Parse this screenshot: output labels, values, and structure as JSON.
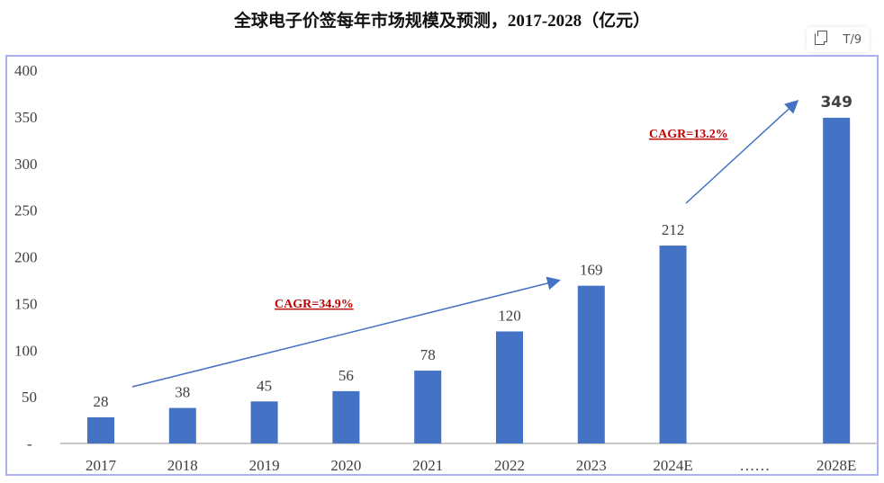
{
  "chart_data": {
    "type": "bar",
    "title": "全球电子价签每年市场规模及预测，2017-2028（亿元）",
    "categories": [
      "2017",
      "2018",
      "2019",
      "2020",
      "2021",
      "2022",
      "2023",
      "2024E",
      "……",
      "2028E"
    ],
    "values": [
      28,
      38,
      45,
      56,
      78,
      120,
      169,
      212,
      null,
      349
    ],
    "data_labels": [
      "28",
      "38",
      "45",
      "56",
      "78",
      "120",
      "169",
      "212",
      "",
      "349"
    ],
    "y_ticks": [
      "-",
      "50",
      "100",
      "150",
      "200",
      "250",
      "300",
      "350",
      "400"
    ],
    "ylim": [
      0,
      400
    ],
    "grid": false,
    "bar_color": "#4472c4",
    "annotations": [
      {
        "text": "CAGR=34.9%",
        "from": "2017",
        "to": "2023",
        "color": "#c00000"
      },
      {
        "text": "CAGR=13.2%",
        "from": "2024E",
        "to": "2028E",
        "color": "#c00000"
      }
    ]
  },
  "toolbar": {
    "copy_icon": "copy-icon",
    "translate_icon": "text-format-icon",
    "translate_label": "T/9"
  }
}
